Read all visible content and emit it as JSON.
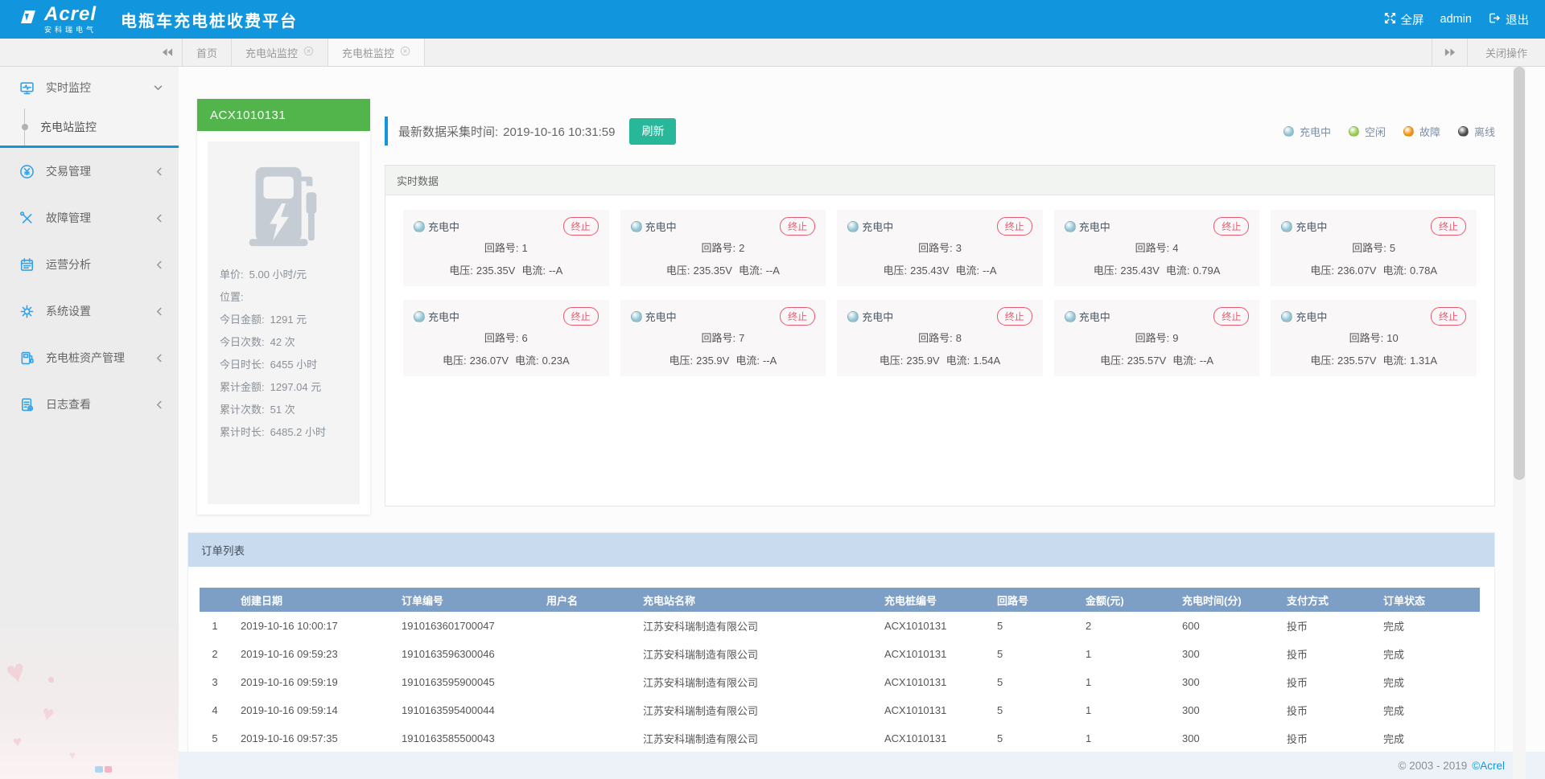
{
  "header": {
    "logo_text": "Acrel",
    "logo_subtext": "安科瑞电气",
    "app_title": "电瓶车充电桩收费平台",
    "fullscreen_label": "全屏",
    "username": "admin",
    "logout_label": "退出"
  },
  "tabbar": {
    "tabs": [
      {
        "label": "首页",
        "closable": false,
        "active": false
      },
      {
        "label": "充电站监控",
        "closable": true,
        "active": false
      },
      {
        "label": "充电桩监控",
        "closable": true,
        "active": true
      }
    ],
    "close_ops_label": "关闭操作"
  },
  "sidebar": {
    "items": [
      {
        "label": "实时监控",
        "icon": "monitor-icon",
        "expanded": true,
        "children": [
          {
            "label": "充电站监控",
            "active": true
          }
        ]
      },
      {
        "label": "交易管理",
        "icon": "transaction-icon",
        "expanded": false
      },
      {
        "label": "故障管理",
        "icon": "fault-icon",
        "expanded": false
      },
      {
        "label": "运营分析",
        "icon": "analysis-icon",
        "expanded": false
      },
      {
        "label": "系统设置",
        "icon": "settings-icon",
        "expanded": false
      },
      {
        "label": "充电桩资产管理",
        "icon": "asset-icon",
        "expanded": false
      },
      {
        "label": "日志查看",
        "icon": "log-icon",
        "expanded": false
      }
    ]
  },
  "device": {
    "id": "ACX1010131",
    "stats": [
      {
        "label": "单价:",
        "value": "5.00 小时/元"
      },
      {
        "label": "位置:",
        "value": ""
      },
      {
        "label": "今日金额:",
        "value": "1291 元"
      },
      {
        "label": "今日次数:",
        "value": "42 次"
      },
      {
        "label": "今日时长:",
        "value": "6455 小时"
      },
      {
        "label": "累计金额:",
        "value": "1297.04 元"
      },
      {
        "label": "累计次数:",
        "value": "51 次"
      },
      {
        "label": "累计时长:",
        "value": "6485.2 小时"
      }
    ]
  },
  "monitor": {
    "collect_time_label": "最新数据采集时间:",
    "collect_time": "2019-10-16 10:31:59",
    "refresh_label": "刷新",
    "legend": [
      {
        "label": "充电中",
        "color": "#8fc3d2"
      },
      {
        "label": "空闲",
        "color": "#97cc4f"
      },
      {
        "label": "故障",
        "color": "#f0930d"
      },
      {
        "label": "离线",
        "color": "#4d4d4d"
      }
    ],
    "realtime_title": "实时数据",
    "status_label": "充电中",
    "terminate_label": "终止",
    "circuit_label": "回路号:",
    "voltage_label": "电压:",
    "current_label": "电流:",
    "channels": [
      {
        "circuit": "1",
        "voltage": "235.35V",
        "current": "--A"
      },
      {
        "circuit": "2",
        "voltage": "235.35V",
        "current": "--A"
      },
      {
        "circuit": "3",
        "voltage": "235.43V",
        "current": "--A"
      },
      {
        "circuit": "4",
        "voltage": "235.43V",
        "current": "0.79A"
      },
      {
        "circuit": "5",
        "voltage": "236.07V",
        "current": "0.78A"
      },
      {
        "circuit": "6",
        "voltage": "236.07V",
        "current": "0.23A"
      },
      {
        "circuit": "7",
        "voltage": "235.9V",
        "current": "--A"
      },
      {
        "circuit": "8",
        "voltage": "235.9V",
        "current": "1.54A"
      },
      {
        "circuit": "9",
        "voltage": "235.57V",
        "current": "--A"
      },
      {
        "circuit": "10",
        "voltage": "235.57V",
        "current": "1.31A"
      }
    ]
  },
  "orders": {
    "title": "订单列表",
    "columns": [
      "创建日期",
      "订单编号",
      "用户名",
      "充电站名称",
      "充电桩编号",
      "回路号",
      "金额(元)",
      "充电时间(分)",
      "支付方式",
      "订单状态"
    ],
    "rows": [
      [
        "1",
        "2019-10-16 10:00:17",
        "1910163601700047",
        "",
        "江苏安科瑞制造有限公司",
        "ACX1010131",
        "5",
        "2",
        "600",
        "投币",
        "完成"
      ],
      [
        "2",
        "2019-10-16 09:59:23",
        "1910163596300046",
        "",
        "江苏安科瑞制造有限公司",
        "ACX1010131",
        "5",
        "1",
        "300",
        "投币",
        "完成"
      ],
      [
        "3",
        "2019-10-16 09:59:19",
        "1910163595900045",
        "",
        "江苏安科瑞制造有限公司",
        "ACX1010131",
        "5",
        "1",
        "300",
        "投币",
        "完成"
      ],
      [
        "4",
        "2019-10-16 09:59:14",
        "1910163595400044",
        "",
        "江苏安科瑞制造有限公司",
        "ACX1010131",
        "5",
        "1",
        "300",
        "投币",
        "完成"
      ],
      [
        "5",
        "2019-10-16 09:57:35",
        "1910163585500043",
        "",
        "江苏安科瑞制造有限公司",
        "ACX1010131",
        "5",
        "1",
        "300",
        "投币",
        "完成"
      ]
    ]
  },
  "footer": {
    "copyright": "© 2003 - 2019",
    "brand": "©Acrel"
  },
  "colors": {
    "header_blue": "#1196dd",
    "device_green": "#52b54c",
    "refresh_green": "#29b79a",
    "terminate_red": "#e85a70",
    "table_header_blue": "#7e9fc5",
    "orders_header_blue": "#c9dbee"
  }
}
